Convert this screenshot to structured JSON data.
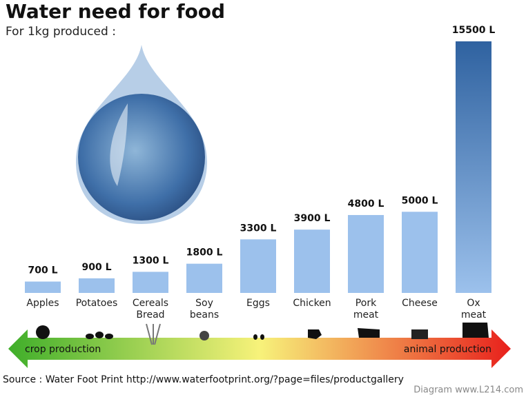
{
  "chart_data": {
    "type": "bar",
    "title": "Water need for food",
    "subtitle": "For 1kg produced :",
    "categories": [
      "Apples",
      "Potatoes",
      "Cereals Bread",
      "Soy beans",
      "Eggs",
      "Chicken",
      "Pork meat",
      "Cheese",
      "Ox meat"
    ],
    "values": [
      700,
      900,
      1300,
      1800,
      3300,
      3900,
      4800,
      5000,
      15500
    ],
    "value_labels": [
      "700 L",
      "900 L",
      "1300 L",
      "1800 L",
      "3300 L",
      "3900 L",
      "4800 L",
      "5000 L",
      "15500 L"
    ],
    "color": "#9cc1ec",
    "arrow_left_label": "crop production",
    "arrow_right_label": "animal production",
    "source": "Source : Water Foot Print http://www.waterfootprint.org/?page=files/productgallery",
    "credit": "Diagram www.L214.com"
  }
}
